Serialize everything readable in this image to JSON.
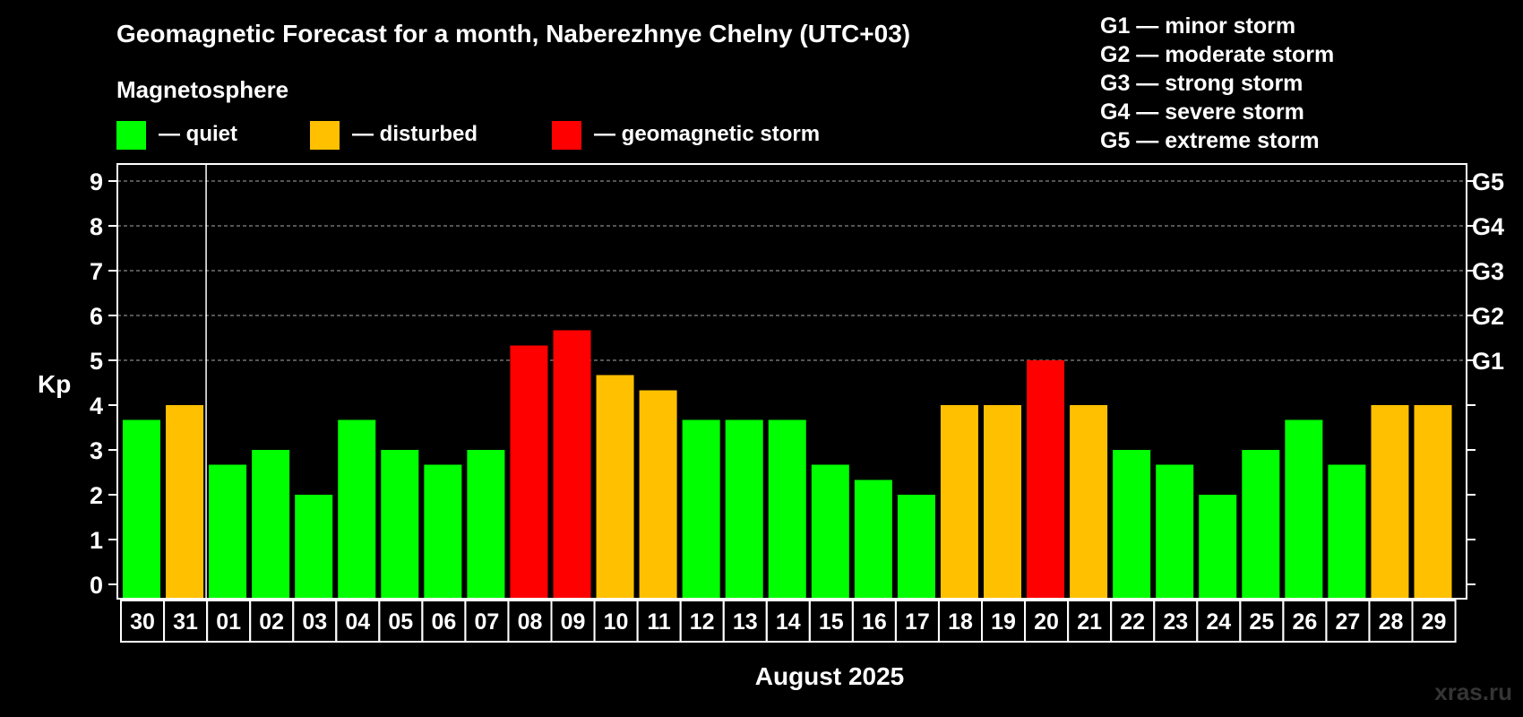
{
  "chart_data": {
    "type": "bar",
    "title": "Geomagnetic Forecast for a month, Naberezhnye Chelny (UTC+03)",
    "legend_title": "Magnetosphere",
    "legend": [
      {
        "key": "quiet",
        "label": "— quiet",
        "color": "#00ff00"
      },
      {
        "key": "disturbed",
        "label": "— disturbed",
        "color": "#ffc000"
      },
      {
        "key": "storm",
        "label": "— geomagnetic storm",
        "color": "#ff0000"
      }
    ],
    "g_scale_legend": [
      "G1 — minor storm",
      "G2 — moderate storm",
      "G3 — strong storm",
      "G4 — severe storm",
      "G5 — extreme storm"
    ],
    "ylabel": "Kp",
    "xlabel": "August 2025",
    "ylim": [
      0,
      9
    ],
    "yticks": [
      0,
      1,
      2,
      3,
      4,
      5,
      6,
      7,
      8,
      9
    ],
    "right_axis_labels": [
      {
        "kp": 5,
        "label": "G1"
      },
      {
        "kp": 6,
        "label": "G2"
      },
      {
        "kp": 7,
        "label": "G3"
      },
      {
        "kp": 8,
        "label": "G4"
      },
      {
        "kp": 9,
        "label": "G5"
      }
    ],
    "categories": [
      "30",
      "31",
      "01",
      "02",
      "03",
      "04",
      "05",
      "06",
      "07",
      "08",
      "09",
      "10",
      "11",
      "12",
      "13",
      "14",
      "15",
      "16",
      "17",
      "18",
      "19",
      "20",
      "21",
      "22",
      "23",
      "24",
      "25",
      "26",
      "27",
      "28",
      "29"
    ],
    "values": [
      3.67,
      4,
      2.67,
      3,
      2,
      3.67,
      3,
      2.67,
      3,
      5.33,
      5.67,
      4.67,
      4.33,
      3.67,
      3.67,
      3.67,
      2.67,
      2.33,
      2,
      4,
      4,
      5,
      4,
      3,
      2.67,
      2,
      3,
      3.67,
      2.67,
      4,
      4
    ],
    "levels": [
      "quiet",
      "disturbed",
      "quiet",
      "quiet",
      "quiet",
      "quiet",
      "quiet",
      "quiet",
      "quiet",
      "storm",
      "storm",
      "disturbed",
      "disturbed",
      "quiet",
      "quiet",
      "quiet",
      "quiet",
      "quiet",
      "quiet",
      "disturbed",
      "disturbed",
      "storm",
      "disturbed",
      "quiet",
      "quiet",
      "quiet",
      "quiet",
      "quiet",
      "quiet",
      "disturbed",
      "disturbed"
    ],
    "month_divider_after": "31"
  },
  "watermark": "xras.ru"
}
